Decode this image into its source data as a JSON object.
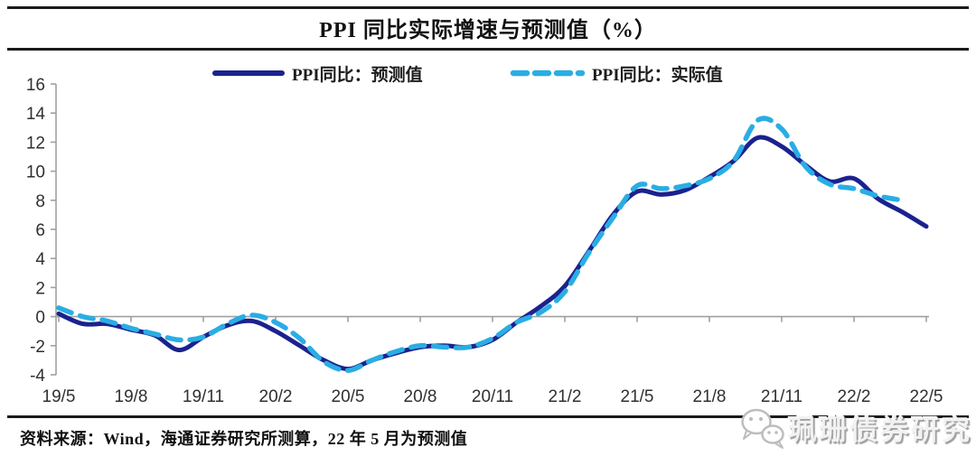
{
  "header": {
    "title": "PPI 同比实际增速与预测值（%）"
  },
  "legend": {
    "forecast_label": "PPI同比：预测值",
    "actual_label": "PPI同比：实际值"
  },
  "footer": {
    "source": "资料来源：Wind，海通证券研究所测算，22 年 5 月为预测值"
  },
  "watermark": {
    "icon": "wechat-icon",
    "text": "珮珊债券研究"
  },
  "colors": {
    "forecast_line": "#1b228e",
    "actual_line": "#2aade4",
    "axis": "#a0a0a0",
    "rule": "#1a1a1a",
    "label_text": "#303030",
    "watermark_gray": "#bdbdbd"
  },
  "chart_data": {
    "type": "line",
    "title": "PPI 同比实际增速与预测值（%）",
    "xlabel": "",
    "ylabel": "",
    "ylim": [
      -4,
      16
    ],
    "y_ticks": [
      16,
      14,
      12,
      10,
      8,
      6,
      4,
      2,
      0,
      -2,
      -4
    ],
    "grid": "zero-line-only",
    "legend_position": "top",
    "x": [
      "19/5",
      "19/6",
      "19/7",
      "19/8",
      "19/9",
      "19/10",
      "19/11",
      "19/12",
      "20/1",
      "20/2",
      "20/3",
      "20/4",
      "20/5",
      "20/6",
      "20/7",
      "20/8",
      "20/9",
      "20/10",
      "20/11",
      "20/12",
      "21/1",
      "21/2",
      "21/3",
      "21/4",
      "21/5",
      "21/6",
      "21/7",
      "21/8",
      "21/9",
      "21/10",
      "21/11",
      "21/12",
      "22/1",
      "22/2",
      "22/3",
      "22/4",
      "22/5"
    ],
    "x_tick_labels": [
      "19/5",
      "19/8",
      "19/11",
      "20/2",
      "20/5",
      "20/8",
      "20/11",
      "21/2",
      "21/5",
      "21/8",
      "21/11",
      "22/2",
      "22/5"
    ],
    "x_tick_every": 3,
    "series": [
      {
        "name": "PPI同比：预测值",
        "style": "solid",
        "color": "#1b228e",
        "values": [
          0.2,
          -0.5,
          -0.5,
          -0.9,
          -1.3,
          -2.3,
          -1.4,
          -0.6,
          -0.3,
          -1.0,
          -2.0,
          -3.0,
          -3.6,
          -3.0,
          -2.5,
          -2.1,
          -2.0,
          -2.1,
          -1.6,
          -0.4,
          0.7,
          2.1,
          4.5,
          7.0,
          8.6,
          8.4,
          8.7,
          9.6,
          10.7,
          12.3,
          11.7,
          10.4,
          9.3,
          9.5,
          8.1,
          7.2,
          6.2
        ]
      },
      {
        "name": "PPI同比：实际值",
        "style": "dashed",
        "color": "#2aade4",
        "values": [
          0.6,
          0.0,
          -0.3,
          -0.8,
          -1.2,
          -1.6,
          -1.4,
          -0.5,
          0.1,
          -0.4,
          -1.5,
          -3.1,
          -3.7,
          -3.0,
          -2.4,
          -2.0,
          -2.1,
          -2.1,
          -1.5,
          -0.4,
          0.3,
          1.7,
          4.4,
          6.8,
          9.0,
          8.8,
          9.0,
          9.5,
          10.7,
          13.5,
          12.9,
          10.3,
          9.1,
          8.8,
          8.3,
          8.0,
          null
        ]
      }
    ]
  }
}
